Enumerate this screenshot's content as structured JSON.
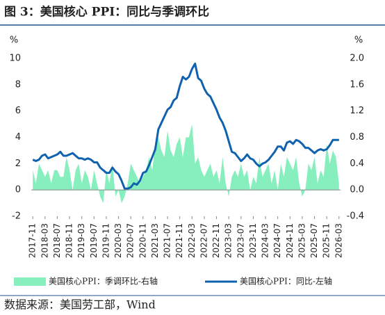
{
  "chart_data": {
    "type": "line_area_dual",
    "title": "图 3：美国核心 PPI：同比与季调环比",
    "source": "数据来源：美国劳工部，Wind",
    "y_unit": "%",
    "y2_unit": "%",
    "categories": [
      "2017-11",
      null,
      null,
      null,
      "2018-03",
      null,
      null,
      null,
      "2018-07",
      null,
      null,
      null,
      "2018-11",
      null,
      null,
      null,
      "2019-03",
      null,
      null,
      null,
      "2019-07",
      null,
      null,
      null,
      "2019-11",
      null,
      null,
      null,
      "2020-03",
      null,
      null,
      null,
      "2020-07",
      null,
      null,
      null,
      "2020-11",
      null,
      null,
      null,
      "2021-03",
      null,
      null,
      null,
      "2021-07",
      null,
      null,
      null,
      "2021-11",
      null,
      null,
      null,
      "2022-03",
      null,
      null,
      null,
      "2022-07",
      null,
      null,
      null,
      "2022-11",
      null,
      null,
      null,
      "2023-03",
      null,
      null,
      null,
      "2023-07",
      null,
      null,
      null,
      "2023-11",
      null,
      null,
      null,
      "2024-03",
      null,
      null,
      null,
      "2024-07",
      null,
      null,
      null,
      "2024-11",
      null,
      null,
      null,
      "2025-03",
      null,
      null,
      null,
      "2025-07",
      null,
      null,
      null,
      "2025-11",
      null,
      null,
      null,
      "2026-03"
    ],
    "ylim": [
      -2,
      10
    ],
    "yticks": [
      -2,
      0,
      2,
      4,
      6,
      8,
      10
    ],
    "y2lim": [
      -0.4,
      2.0
    ],
    "y2ticks": [
      -0.4,
      {
        "value": 0,
        "label": "0.0"
      },
      0.4,
      0.8,
      1.2,
      1.6,
      {
        "value": 2,
        "label": "2.0"
      }
    ],
    "series": [
      {
        "name": "美国核心PPI：季调环比-右轴",
        "type": "area",
        "axis": "y2",
        "color": "#86efbd",
        "values": [
          0.3,
          0.1,
          0.4,
          0.3,
          0.2,
          0.3,
          0.1,
          0.3,
          0.3,
          0.2,
          0.2,
          0.5,
          0.3,
          0.0,
          0.3,
          0.4,
          0.1,
          0.3,
          0.2,
          0.0,
          0.3,
          0.1,
          -0.1,
          -0.2,
          0.3,
          0.1,
          0.4,
          -0.1,
          0.0,
          -0.2,
          -0.1,
          0.1,
          0.4,
          0.3,
          0.2,
          0.1,
          0.2,
          0.3,
          0.5,
          0.3,
          0.7,
          0.8,
          0.6,
          0.5,
          0.9,
          0.6,
          0.5,
          0.7,
          0.8,
          0.5,
          0.8,
          0.8,
          1.0,
          0.4,
          0.5,
          0.3,
          0.2,
          0.3,
          0.4,
          0.2,
          0.3,
          0.1,
          0.5,
          0.1,
          -0.1,
          0.2,
          0.3,
          0.2,
          0.4,
          0.2,
          0.3,
          0.0,
          0.2,
          0.1,
          0.5,
          0.2,
          0.3,
          0.4,
          0.1,
          0.3,
          0.0,
          0.4,
          0.2,
          0.5,
          0.4,
          0.3,
          0.5,
          0.1,
          -0.1,
          0.0,
          0.4,
          0.3,
          0.5,
          0.1,
          0.3,
          0.2,
          0.7,
          0.4,
          0.6,
          0.5,
          0.1
        ]
      },
      {
        "name": "美国核心PPI：同比-左轴",
        "type": "line",
        "axis": "y",
        "color": "#0f62ad",
        "values": [
          2.3,
          2.2,
          2.3,
          2.6,
          2.7,
          2.4,
          2.5,
          2.6,
          2.7,
          2.9,
          2.6,
          2.6,
          2.7,
          2.8,
          2.6,
          2.4,
          2.4,
          2.3,
          2.4,
          2.3,
          2.1,
          2.1,
          1.7,
          1.5,
          1.3,
          1.3,
          1.7,
          1.4,
          1.2,
          0.7,
          0.1,
          0.1,
          0.2,
          0.5,
          0.4,
          0.7,
          1.3,
          1.4,
          1.9,
          2.5,
          3.1,
          4.6,
          5.1,
          5.6,
          6.1,
          6.3,
          6.8,
          7.0,
          7.9,
          8.6,
          8.4,
          8.6,
          9.2,
          9.6,
          8.5,
          8.3,
          7.7,
          7.3,
          7.1,
          6.6,
          6.1,
          5.5,
          5.1,
          4.5,
          3.7,
          2.9,
          2.8,
          2.5,
          2.2,
          2.4,
          2.7,
          2.4,
          2.3,
          2.0,
          1.8,
          2.0,
          2.1,
          2.3,
          2.6,
          2.9,
          3.3,
          3.3,
          3.0,
          3.6,
          3.7,
          3.5,
          3.8,
          3.7,
          3.5,
          3.2,
          3.2,
          3.0,
          2.8,
          3.0,
          3.1,
          3.0,
          3.1,
          3.4,
          3.8,
          3.8,
          3.8
        ]
      }
    ]
  }
}
